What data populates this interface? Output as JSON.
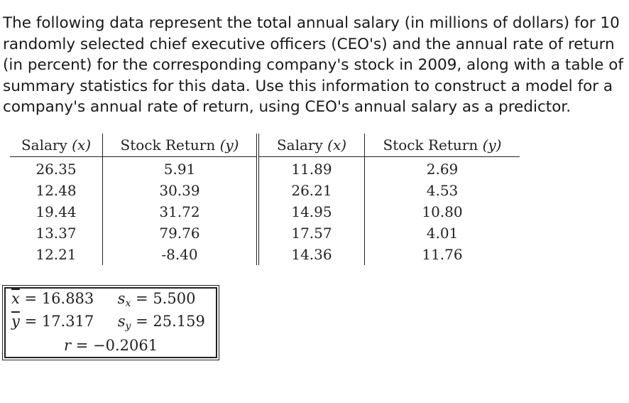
{
  "problem": {
    "text": "The following data represent the total annual salary (in millions of dollars) for 10 randomly selected chief executive officers (CEO's) and the annual rate of return (in percent) for the corresponding company's stock in 2009, along with a table of summary statistics for this data.  Use this information to construct a model for a company's annual rate of return, using CEO's annual salary as a predictor."
  },
  "table": {
    "headers": [
      {
        "label": "Salary",
        "var": "(x)"
      },
      {
        "label": "Stock Return",
        "var": "(y)"
      },
      {
        "label": "Salary",
        "var": "(x)"
      },
      {
        "label": "Stock Return",
        "var": "(y)"
      }
    ],
    "rows": [
      [
        "26.35",
        "5.91",
        "11.89",
        "2.69"
      ],
      [
        "12.48",
        "30.39",
        "26.21",
        "4.53"
      ],
      [
        "19.44",
        "31.72",
        "14.95",
        "10.80"
      ],
      [
        "13.37",
        "79.76",
        "17.57",
        "4.01"
      ],
      [
        "12.21",
        "-8.40",
        "14.36",
        "11.76"
      ]
    ]
  },
  "stats": {
    "xbar_symbol": "x",
    "xbar_value": "= 16.883",
    "sx_symbol": "s",
    "sx_sub": "x",
    "sx_value": "= 5.500",
    "ybar_symbol": "y",
    "ybar_value": "= 17.317",
    "sy_symbol": "s",
    "sy_sub": "y",
    "sy_value": "= 25.159",
    "r_symbol": "r",
    "r_value": "= −0.2061"
  }
}
